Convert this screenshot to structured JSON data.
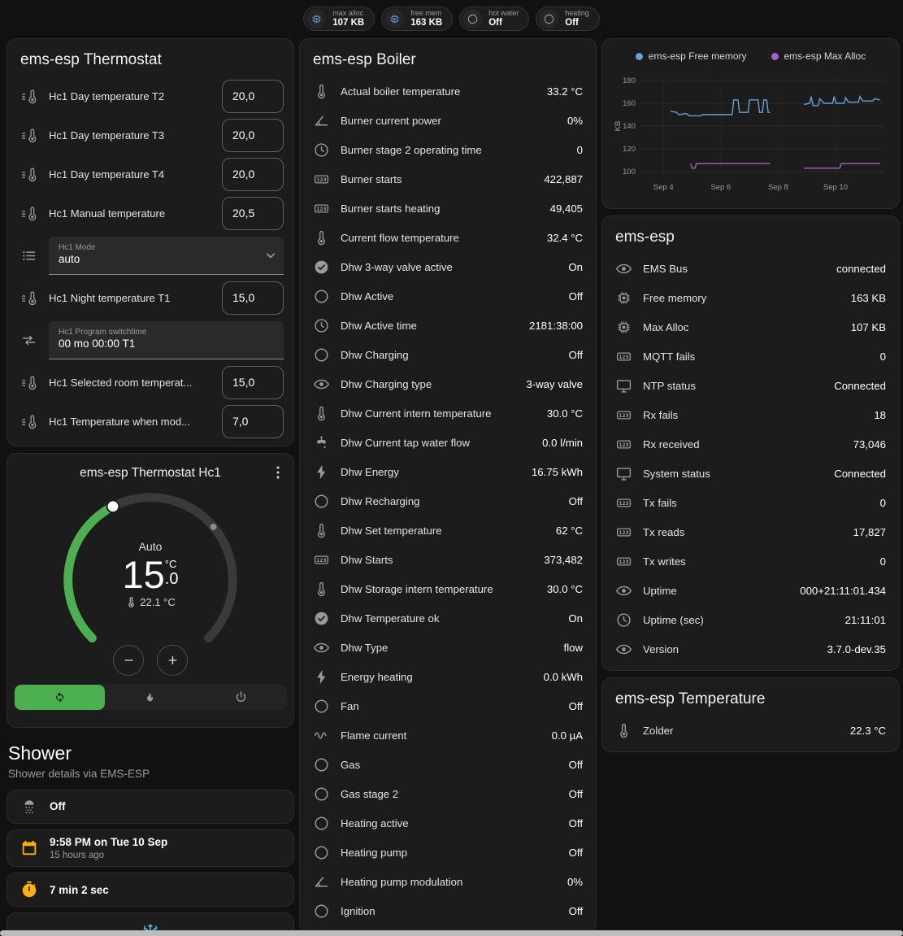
{
  "theme": {
    "accent_blue": "#5b9bd8",
    "accent_green": "#4caf50",
    "amber": "#ffb300",
    "icon_gray": "#9a9a9a",
    "snow_blue": "#4fc3f7",
    "card": "#1c1c1c",
    "bg": "#111111"
  },
  "topbar": {
    "badges": [
      {
        "icon": "memory-chip-icon",
        "color": "#5b9bd8",
        "label": "max alloc",
        "value": "107 KB"
      },
      {
        "icon": "memory-chip-icon",
        "color": "#5b9bd8",
        "label": "free mem",
        "value": "163 KB"
      },
      {
        "icon": "circle-icon",
        "color": "#9b9b9b",
        "label": "hot water",
        "value": "Off"
      },
      {
        "icon": "circle-icon",
        "color": "#9b9b9b",
        "label": "heating",
        "value": "Off"
      }
    ]
  },
  "thermostat_card": {
    "title": "ems-esp Thermostat",
    "rows": [
      {
        "icon": "water-thermometer-icon",
        "label": "Hc1 Day temperature T2",
        "value": "20,0"
      },
      {
        "icon": "water-thermometer-icon",
        "label": "Hc1 Day temperature T3",
        "value": "20,0"
      },
      {
        "icon": "water-thermometer-icon",
        "label": "Hc1 Day temperature T4",
        "value": "20,0"
      },
      {
        "icon": "water-thermometer-icon",
        "label": "Hc1 Manual temperature",
        "value": "20,5"
      },
      {
        "icon": "list-icon",
        "box_label": "Hc1 Mode",
        "value": "auto",
        "caret_icon": "chevron-down-icon"
      },
      {
        "icon": "water-thermometer-icon",
        "label": "Hc1 Night temperature T1",
        "value": "15,0"
      },
      {
        "icon": "switchtime-icon",
        "box_label": "Hc1 Program switchtime",
        "value": "00 mo 00:00 T1"
      },
      {
        "icon": "water-thermometer-icon",
        "label": "Hc1 Selected room temperat...",
        "value": "15,0"
      },
      {
        "icon": "water-thermometer-icon",
        "label": "Hc1 Temperature when mod...",
        "value": "7,0"
      }
    ]
  },
  "dial_card": {
    "title": "ems-esp Thermostat Hc1",
    "menu_icon": "dots-vertical-icon",
    "mode_label": "Auto",
    "target_whole": "15",
    "target_fraction": ".0",
    "unit": "°C",
    "current_icon": "thermometer-icon",
    "current_label": "22.1 °C",
    "decrease_icon": "minus-icon",
    "increase_icon": "plus-icon",
    "modes": [
      {
        "icon": "auto-mode-icon",
        "active": true
      },
      {
        "icon": "flame-icon",
        "active": false
      },
      {
        "icon": "power-icon",
        "active": false
      }
    ]
  },
  "shower": {
    "title": "Shower",
    "subtitle": "Shower details via EMS-ESP",
    "cards": [
      {
        "icon": "shower-icon",
        "primary": "Off",
        "secondary": ""
      },
      {
        "icon": "calendar-icon",
        "primary": "9:58 PM on Tue 10 Sep",
        "secondary": "15 hours ago"
      },
      {
        "icon": "timer-icon",
        "primary": "7 min 2 sec",
        "secondary": ""
      }
    ],
    "extra_card_icon": "snowflake-icon"
  },
  "boiler_card": {
    "title": "ems-esp Boiler",
    "rows": [
      {
        "icon": "thermometer-icon",
        "label": "Actual boiler temperature",
        "value": "33.2 °C"
      },
      {
        "icon": "angle-icon",
        "label": "Burner current power",
        "value": "0%"
      },
      {
        "icon": "clock-icon",
        "label": "Burner stage 2 operating time",
        "value": "0"
      },
      {
        "icon": "counter-icon",
        "label": "Burner starts",
        "value": "422,887"
      },
      {
        "icon": "counter-icon",
        "label": "Burner starts heating",
        "value": "49,405"
      },
      {
        "icon": "thermometer-icon",
        "label": "Current flow temperature",
        "value": "32.4 °C"
      },
      {
        "icon": "check-circle-icon",
        "label": "Dhw 3-way valve active",
        "value": "On"
      },
      {
        "icon": "circle-icon",
        "label": "Dhw Active",
        "value": "Off"
      },
      {
        "icon": "clock-icon",
        "label": "Dhw Active time",
        "value": "2181:38:00"
      },
      {
        "icon": "circle-icon",
        "label": "Dhw Charging",
        "value": "Off"
      },
      {
        "icon": "eye-icon",
        "label": "Dhw Charging type",
        "value": "3-way valve"
      },
      {
        "icon": "thermometer-icon",
        "label": "Dhw Current intern temperature",
        "value": "30.0 °C"
      },
      {
        "icon": "water-pump-icon",
        "label": "Dhw Current tap water flow",
        "value": "0.0 l/min"
      },
      {
        "icon": "lightning-icon",
        "label": "Dhw Energy",
        "value": "16.75 kWh"
      },
      {
        "icon": "circle-icon",
        "label": "Dhw Recharging",
        "value": "Off"
      },
      {
        "icon": "thermometer-icon",
        "label": "Dhw Set temperature",
        "value": "62 °C"
      },
      {
        "icon": "counter-icon",
        "label": "Dhw Starts",
        "value": "373,482"
      },
      {
        "icon": "thermometer-icon",
        "label": "Dhw Storage intern temperature",
        "value": "30.0 °C"
      },
      {
        "icon": "check-circle-icon",
        "label": "Dhw Temperature ok",
        "value": "On"
      },
      {
        "icon": "eye-icon",
        "label": "Dhw Type",
        "value": "flow"
      },
      {
        "icon": "lightning-icon",
        "label": "Energy heating",
        "value": "0.0 kWh"
      },
      {
        "icon": "circle-icon",
        "label": "Fan",
        "value": "Off"
      },
      {
        "icon": "current-icon",
        "label": "Flame current",
        "value": "0.0 µA"
      },
      {
        "icon": "circle-icon",
        "label": "Gas",
        "value": "Off"
      },
      {
        "icon": "circle-icon",
        "label": "Gas stage 2",
        "value": "Off"
      },
      {
        "icon": "circle-icon",
        "label": "Heating active",
        "value": "Off"
      },
      {
        "icon": "circle-icon",
        "label": "Heating pump",
        "value": "Off"
      },
      {
        "icon": "angle-icon",
        "label": "Heating pump modulation",
        "value": "0%"
      },
      {
        "icon": "circle-icon",
        "label": "Ignition",
        "value": "Off"
      }
    ]
  },
  "esp_card": {
    "title": "ems-esp",
    "rows": [
      {
        "icon": "eye-icon",
        "label": "EMS Bus",
        "value": "connected"
      },
      {
        "icon": "memory-chip-icon",
        "label": "Free memory",
        "value": "163 KB"
      },
      {
        "icon": "memory-chip-icon",
        "label": "Max Alloc",
        "value": "107 KB"
      },
      {
        "icon": "counter-icon",
        "label": "MQTT fails",
        "value": "0"
      },
      {
        "icon": "monitor-icon",
        "label": "NTP status",
        "value": "Connected"
      },
      {
        "icon": "counter-icon",
        "label": "Rx fails",
        "value": "18"
      },
      {
        "icon": "counter-icon",
        "label": "Rx received",
        "value": "73,046"
      },
      {
        "icon": "monitor-icon",
        "label": "System status",
        "value": "Connected"
      },
      {
        "icon": "counter-icon",
        "label": "Tx fails",
        "value": "0"
      },
      {
        "icon": "counter-icon",
        "label": "Tx reads",
        "value": "17,827"
      },
      {
        "icon": "counter-icon",
        "label": "Tx writes",
        "value": "0"
      },
      {
        "icon": "eye-icon",
        "label": "Uptime",
        "value": "000+21:11:01.434"
      },
      {
        "icon": "clock-icon",
        "label": "Uptime (sec)",
        "value": "21:11:01"
      },
      {
        "icon": "eye-icon",
        "label": "Version",
        "value": "3.7.0-dev.35"
      }
    ]
  },
  "temp_card": {
    "title": "ems-esp Temperature",
    "rows": [
      {
        "icon": "thermometer-icon",
        "label": "Zolder",
        "value": "22.3 °C"
      }
    ]
  },
  "chart_data": {
    "type": "line",
    "title": "",
    "xlabel": "",
    "ylabel": "KB",
    "xlim": [
      3.2,
      11.7
    ],
    "ylim": [
      95,
      185
    ],
    "yticks": [
      100,
      120,
      140,
      160,
      180
    ],
    "xticks": [
      {
        "x": 4,
        "label": "Sep 4"
      },
      {
        "x": 6,
        "label": "Sep 6"
      },
      {
        "x": 8,
        "label": "Sep 8"
      },
      {
        "x": 10,
        "label": "Sep 10"
      }
    ],
    "grid": true,
    "legend_position": "top",
    "series": [
      {
        "name": "ems-esp Free memory",
        "color": "#6b9fd8",
        "segments": [
          [
            [
              4.25,
              153
            ],
            [
              4.45,
              152
            ],
            [
              4.55,
              150
            ],
            [
              4.8,
              151
            ],
            [
              4.9,
              149
            ],
            [
              5.3,
              149
            ],
            [
              5.35,
              150
            ],
            [
              6.4,
              150
            ],
            [
              6.45,
              163
            ],
            [
              6.6,
              163
            ],
            [
              6.65,
              152
            ],
            [
              6.95,
              152
            ],
            [
              7.0,
              163
            ],
            [
              7.3,
              163
            ],
            [
              7.35,
              152
            ],
            [
              7.45,
              152
            ],
            [
              7.5,
              163
            ],
            [
              7.6,
              163
            ],
            [
              7.65,
              152
            ],
            [
              7.72,
              152
            ]
          ],
          [
            [
              8.9,
              159
            ],
            [
              9.1,
              160
            ],
            [
              9.15,
              166
            ],
            [
              9.22,
              158
            ],
            [
              9.4,
              158
            ],
            [
              9.45,
              164
            ],
            [
              9.6,
              160
            ],
            [
              9.9,
              160
            ],
            [
              9.95,
              166
            ],
            [
              10.02,
              160
            ],
            [
              10.3,
              160
            ],
            [
              10.35,
              165
            ],
            [
              10.45,
              161
            ],
            [
              10.8,
              161
            ],
            [
              10.85,
              166
            ],
            [
              10.95,
              162
            ],
            [
              11.3,
              162
            ],
            [
              11.35,
              164
            ],
            [
              11.55,
              163
            ]
          ]
        ]
      },
      {
        "name": "ems-esp Max Alloc",
        "color": "#a362c4",
        "segments": [
          [
            [
              4.95,
              107
            ],
            [
              5.0,
              103
            ],
            [
              5.1,
              103
            ],
            [
              5.15,
              107
            ],
            [
              7.72,
              107
            ]
          ],
          [
            [
              8.9,
              103
            ],
            [
              10.15,
              103
            ],
            [
              10.2,
              107
            ],
            [
              11.55,
              107
            ]
          ]
        ]
      }
    ]
  }
}
